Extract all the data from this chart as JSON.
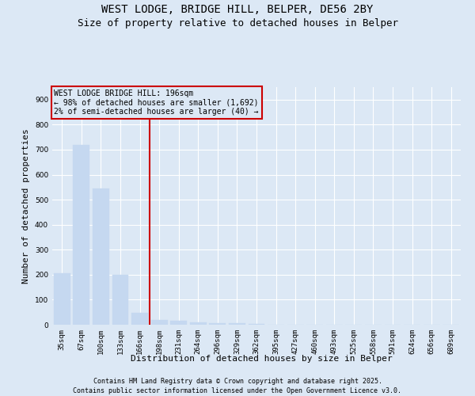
{
  "title1": "WEST LODGE, BRIDGE HILL, BELPER, DE56 2BY",
  "title2": "Size of property relative to detached houses in Belper",
  "xlabel": "Distribution of detached houses by size in Belper",
  "ylabel": "Number of detached properties",
  "categories": [
    "35sqm",
    "67sqm",
    "100sqm",
    "133sqm",
    "166sqm",
    "198sqm",
    "231sqm",
    "264sqm",
    "296sqm",
    "329sqm",
    "362sqm",
    "395sqm",
    "427sqm",
    "460sqm",
    "493sqm",
    "525sqm",
    "558sqm",
    "591sqm",
    "624sqm",
    "656sqm",
    "689sqm"
  ],
  "values": [
    205,
    720,
    545,
    200,
    47,
    18,
    15,
    10,
    5,
    5,
    2,
    0,
    0,
    0,
    0,
    0,
    0,
    0,
    0,
    0,
    0
  ],
  "bar_color": "#c5d8f0",
  "bar_edgecolor": "#c5d8f0",
  "vline_x_index": 5,
  "vline_color": "#cc0000",
  "annotation_text": "WEST LODGE BRIDGE HILL: 196sqm\n← 98% of detached houses are smaller (1,692)\n2% of semi-detached houses are larger (40) →",
  "annotation_box_color": "#cc0000",
  "ylim": [
    0,
    950
  ],
  "yticks": [
    0,
    100,
    200,
    300,
    400,
    500,
    600,
    700,
    800,
    900
  ],
  "footer1": "Contains HM Land Registry data © Crown copyright and database right 2025.",
  "footer2": "Contains public sector information licensed under the Open Government Licence v3.0.",
  "background_color": "#dce8f5",
  "plot_background": "#dce8f5",
  "grid_color": "white",
  "title_fontsize": 10,
  "subtitle_fontsize": 9,
  "axis_label_fontsize": 8,
  "tick_fontsize": 6.5,
  "annotation_fontsize": 7,
  "footer_fontsize": 6
}
